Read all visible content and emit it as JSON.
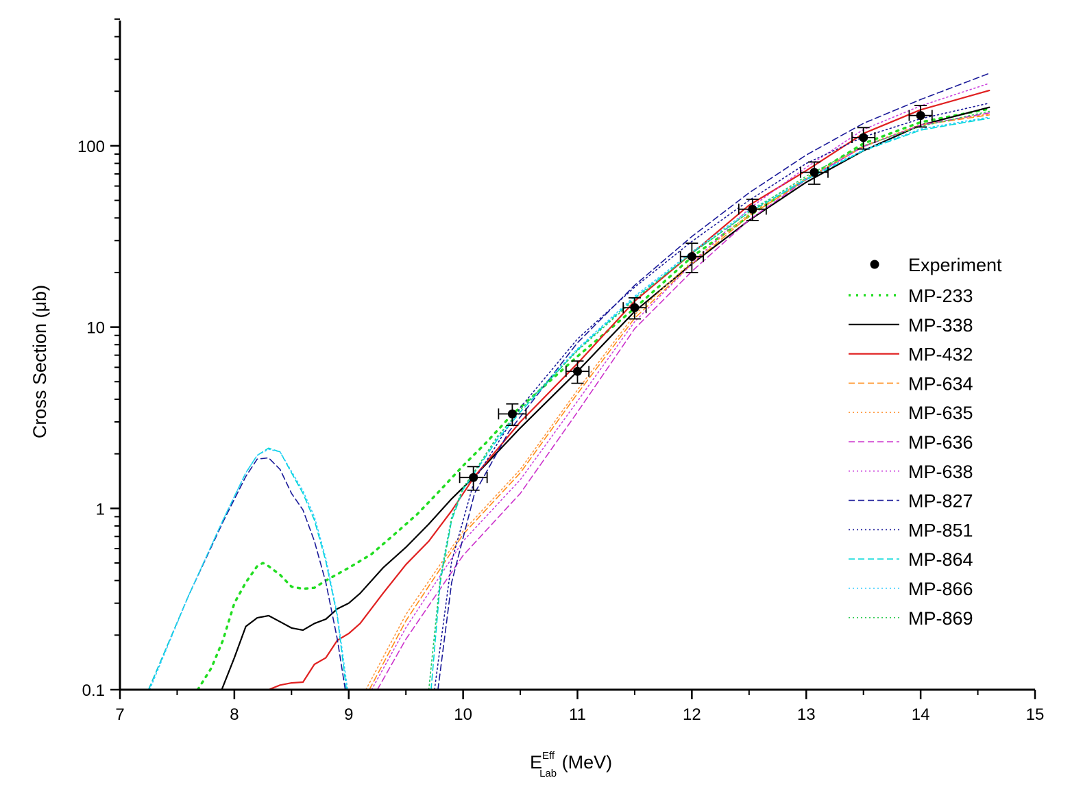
{
  "chart_data": {
    "type": "line",
    "title": "",
    "xlabel": {
      "main": "E",
      "sup": "Eff",
      "sub": "Lab",
      "unit": " (MeV)"
    },
    "ylabel": "Cross Section (μb)",
    "xlim": [
      7,
      15
    ],
    "ylim": [
      0.1,
      500
    ],
    "yscale": "log",
    "grid": false,
    "legend_position": "right",
    "xticks": [
      "7",
      "8",
      "9",
      "10",
      "11",
      "12",
      "13",
      "14",
      "15"
    ],
    "yticks": [
      "0.1",
      "1",
      "10",
      "100"
    ],
    "experiment": {
      "name": "Experiment",
      "color": "#000000",
      "x": [
        10.09,
        10.43,
        11.0,
        11.5,
        12.0,
        12.53,
        13.07,
        13.5,
        14.0
      ],
      "y": [
        1.48,
        3.32,
        5.7,
        12.8,
        24.5,
        44.7,
        71.4,
        111,
        147
      ],
      "xerr": [
        0.12,
        0.12,
        0.1,
        0.1,
        0.1,
        0.12,
        0.12,
        0.1,
        0.1
      ],
      "yerr": [
        0.22,
        0.45,
        0.8,
        1.7,
        4.5,
        6,
        10,
        15,
        20
      ]
    },
    "series": [
      {
        "name": "MP-233",
        "color": "#22dd22",
        "style": "dotted-thick",
        "points": [
          [
            7.68,
            0.1
          ],
          [
            7.8,
            0.132
          ],
          [
            7.9,
            0.187
          ],
          [
            8.0,
            0.3
          ],
          [
            8.1,
            0.39
          ],
          [
            8.2,
            0.48
          ],
          [
            8.25,
            0.5
          ],
          [
            8.3,
            0.48
          ],
          [
            8.4,
            0.43
          ],
          [
            8.5,
            0.37
          ],
          [
            8.6,
            0.36
          ],
          [
            8.7,
            0.365
          ],
          [
            8.8,
            0.4
          ],
          [
            9.0,
            0.47
          ],
          [
            9.2,
            0.56
          ],
          [
            9.4,
            0.72
          ],
          [
            9.6,
            0.93
          ],
          [
            9.8,
            1.26
          ],
          [
            10.0,
            1.72
          ],
          [
            10.2,
            2.3
          ],
          [
            10.43,
            3.3
          ],
          [
            10.6,
            4.1
          ],
          [
            11.0,
            6.9
          ],
          [
            11.5,
            12.7
          ],
          [
            12.0,
            24.4
          ],
          [
            12.5,
            41
          ],
          [
            13.0,
            66
          ],
          [
            13.5,
            103
          ],
          [
            14.0,
            135
          ],
          [
            14.6,
            160
          ]
        ]
      },
      {
        "name": "MP-338",
        "color": "#000000",
        "style": "solid",
        "points": [
          [
            7.89,
            0.1
          ],
          [
            8.0,
            0.15
          ],
          [
            8.1,
            0.223
          ],
          [
            8.2,
            0.249
          ],
          [
            8.3,
            0.256
          ],
          [
            8.4,
            0.237
          ],
          [
            8.5,
            0.219
          ],
          [
            8.6,
            0.213
          ],
          [
            8.7,
            0.232
          ],
          [
            8.8,
            0.245
          ],
          [
            8.9,
            0.279
          ],
          [
            9.0,
            0.3
          ],
          [
            9.1,
            0.34
          ],
          [
            9.3,
            0.47
          ],
          [
            9.5,
            0.61
          ],
          [
            9.7,
            0.82
          ],
          [
            9.9,
            1.13
          ],
          [
            10.09,
            1.48
          ],
          [
            10.5,
            2.78
          ],
          [
            11.0,
            5.7
          ],
          [
            11.5,
            12.2
          ],
          [
            12.0,
            22.3
          ],
          [
            12.5,
            38.8
          ],
          [
            13.0,
            63
          ],
          [
            13.5,
            94
          ],
          [
            14.0,
            130
          ],
          [
            14.6,
            163
          ]
        ]
      },
      {
        "name": "MP-432",
        "color": "#e02020",
        "style": "solid",
        "points": [
          [
            8.3,
            0.1
          ],
          [
            8.4,
            0.106
          ],
          [
            8.5,
            0.109
          ],
          [
            8.6,
            0.11
          ],
          [
            8.7,
            0.138
          ],
          [
            8.8,
            0.15
          ],
          [
            8.9,
            0.187
          ],
          [
            9.0,
            0.204
          ],
          [
            9.1,
            0.232
          ],
          [
            9.3,
            0.34
          ],
          [
            9.5,
            0.49
          ],
          [
            9.7,
            0.66
          ],
          [
            9.9,
            0.97
          ],
          [
            10.1,
            1.5
          ],
          [
            10.5,
            3.0
          ],
          [
            11.0,
            6.3
          ],
          [
            11.5,
            13.9
          ],
          [
            12.0,
            25.5
          ],
          [
            12.5,
            47
          ],
          [
            13.0,
            73
          ],
          [
            13.5,
            117
          ],
          [
            14.0,
            158
          ],
          [
            14.6,
            202
          ]
        ]
      },
      {
        "name": "MP-634",
        "color": "#ff8c1a",
        "style": "dashed",
        "points": [
          [
            9.18,
            0.1
          ],
          [
            9.5,
            0.24
          ],
          [
            10.0,
            0.72
          ],
          [
            10.5,
            1.57
          ],
          [
            11.0,
            4.3
          ],
          [
            11.5,
            11.2
          ],
          [
            12.0,
            22.3
          ],
          [
            12.5,
            41
          ],
          [
            13.0,
            65
          ],
          [
            13.5,
            99
          ],
          [
            14.0,
            130
          ],
          [
            14.6,
            148
          ]
        ]
      },
      {
        "name": "MP-635",
        "color": "#ff9a40",
        "style": "dotted",
        "points": [
          [
            9.15,
            0.1
          ],
          [
            9.5,
            0.26
          ],
          [
            10.0,
            0.75
          ],
          [
            10.5,
            1.64
          ],
          [
            11.0,
            4.5
          ],
          [
            11.5,
            11.7
          ],
          [
            12.0,
            23
          ],
          [
            12.5,
            42
          ],
          [
            13.0,
            66
          ],
          [
            13.5,
            100
          ],
          [
            14.0,
            131
          ],
          [
            14.6,
            150
          ]
        ]
      },
      {
        "name": "MP-636",
        "color": "#cc33cc",
        "style": "dashed",
        "points": [
          [
            9.25,
            0.1
          ],
          [
            9.5,
            0.19
          ],
          [
            9.8,
            0.36
          ],
          [
            10.0,
            0.55
          ],
          [
            10.5,
            1.21
          ],
          [
            11.0,
            3.4
          ],
          [
            11.5,
            9.8
          ],
          [
            12.0,
            20.3
          ],
          [
            12.5,
            39
          ],
          [
            13.0,
            65
          ],
          [
            13.5,
            99
          ],
          [
            14.0,
            130
          ],
          [
            14.6,
            152
          ]
        ]
      },
      {
        "name": "MP-638",
        "color": "#cc44dd",
        "style": "dotted",
        "points": [
          [
            9.2,
            0.1
          ],
          [
            9.5,
            0.22
          ],
          [
            10.0,
            0.66
          ],
          [
            10.5,
            1.44
          ],
          [
            11.0,
            3.9
          ],
          [
            11.5,
            10.7
          ],
          [
            12.0,
            22.3
          ],
          [
            12.5,
            45
          ],
          [
            13.0,
            76
          ],
          [
            13.5,
            123
          ],
          [
            14.0,
            166
          ],
          [
            14.6,
            221
          ]
        ]
      },
      {
        "name": "MP-827",
        "color": "#1a1a99",
        "style": "dashed",
        "points": [
          [
            7.25,
            0.1
          ],
          [
            7.6,
            0.33
          ],
          [
            7.9,
            0.84
          ],
          [
            8.1,
            1.5
          ],
          [
            8.2,
            1.87
          ],
          [
            8.3,
            1.9
          ],
          [
            8.4,
            1.64
          ],
          [
            8.5,
            1.21
          ],
          [
            8.6,
            0.98
          ],
          [
            8.7,
            0.66
          ],
          [
            8.8,
            0.39
          ],
          [
            8.9,
            0.19
          ],
          [
            8.97,
            0.1
          ],
          [
            null,
            null
          ],
          [
            9.78,
            0.1
          ],
          [
            9.9,
            0.39
          ],
          [
            10.1,
            1.21
          ],
          [
            10.4,
            2.65
          ],
          [
            10.5,
            3.2
          ],
          [
            11.0,
            8.2
          ],
          [
            11.5,
            17
          ],
          [
            12.0,
            31.6
          ],
          [
            12.5,
            55
          ],
          [
            13.0,
            89
          ],
          [
            13.5,
            133
          ],
          [
            14.0,
            180
          ],
          [
            14.6,
            251
          ]
        ]
      },
      {
        "name": "MP-851",
        "color": "#1a1a99",
        "style": "dotted",
        "points": [
          [
            9.75,
            0.1
          ],
          [
            9.9,
            0.51
          ],
          [
            10.1,
            1.44
          ],
          [
            10.5,
            3.6
          ],
          [
            11.0,
            8.6
          ],
          [
            11.5,
            16.6
          ],
          [
            12.0,
            29.7
          ],
          [
            12.5,
            50
          ],
          [
            13.0,
            80
          ],
          [
            13.5,
            112
          ],
          [
            14.0,
            141
          ],
          [
            14.6,
            172
          ]
        ]
      },
      {
        "name": "MP-864",
        "color": "#00d8d8",
        "style": "dashed",
        "points": [
          [
            7.25,
            0.1
          ],
          [
            7.6,
            0.33
          ],
          [
            7.9,
            0.86
          ],
          [
            8.1,
            1.57
          ],
          [
            8.2,
            1.96
          ],
          [
            8.3,
            2.15
          ],
          [
            8.4,
            2.05
          ],
          [
            8.5,
            1.57
          ],
          [
            8.6,
            1.21
          ],
          [
            8.7,
            0.86
          ],
          [
            8.8,
            0.51
          ],
          [
            8.9,
            0.254
          ],
          [
            8.98,
            0.1
          ],
          [
            null,
            null
          ],
          [
            9.72,
            0.1
          ],
          [
            9.8,
            0.39
          ],
          [
            9.9,
            0.86
          ],
          [
            10.0,
            1.27
          ],
          [
            10.1,
            1.57
          ],
          [
            10.3,
            2.4
          ],
          [
            10.5,
            3.4
          ],
          [
            11.0,
            7.5
          ],
          [
            11.5,
            14.5
          ],
          [
            12.0,
            25.5
          ],
          [
            12.5,
            43
          ],
          [
            13.0,
            65
          ],
          [
            13.5,
            94
          ],
          [
            14.0,
            122
          ],
          [
            14.6,
            142
          ]
        ]
      },
      {
        "name": "MP-866",
        "color": "#33ccff",
        "style": "dotted",
        "points": [
          [
            7.26,
            0.1
          ],
          [
            7.6,
            0.33
          ],
          [
            7.9,
            0.86
          ],
          [
            8.1,
            1.57
          ],
          [
            8.2,
            1.96
          ],
          [
            8.3,
            2.12
          ],
          [
            8.4,
            2.05
          ],
          [
            8.5,
            1.6
          ],
          [
            8.6,
            1.25
          ],
          [
            8.7,
            0.9
          ],
          [
            8.8,
            0.53
          ],
          [
            8.9,
            0.26
          ],
          [
            8.99,
            0.1
          ],
          [
            null,
            null
          ],
          [
            9.7,
            0.1
          ],
          [
            9.8,
            0.42
          ],
          [
            9.9,
            0.9
          ],
          [
            10.0,
            1.3
          ],
          [
            10.1,
            1.6
          ],
          [
            10.3,
            2.45
          ],
          [
            10.5,
            3.5
          ],
          [
            11.0,
            7.6
          ],
          [
            11.5,
            14.8
          ],
          [
            12.0,
            26
          ],
          [
            12.5,
            44
          ],
          [
            13.0,
            66
          ],
          [
            13.5,
            95
          ],
          [
            14.0,
            124
          ],
          [
            14.6,
            144
          ]
        ]
      },
      {
        "name": "MP-869",
        "color": "#33cc55",
        "style": "dotted",
        "points": [
          [
            9.7,
            0.1
          ],
          [
            9.8,
            0.4
          ],
          [
            9.9,
            0.88
          ],
          [
            10.0,
            1.3
          ],
          [
            10.1,
            1.6
          ],
          [
            10.3,
            2.5
          ],
          [
            10.5,
            3.5
          ],
          [
            11.0,
            7.4
          ],
          [
            11.5,
            14.2
          ],
          [
            12.0,
            25.5
          ],
          [
            12.5,
            43
          ],
          [
            13.0,
            68
          ],
          [
            13.5,
            100
          ],
          [
            14.0,
            128
          ],
          [
            14.6,
            155
          ]
        ]
      }
    ]
  }
}
